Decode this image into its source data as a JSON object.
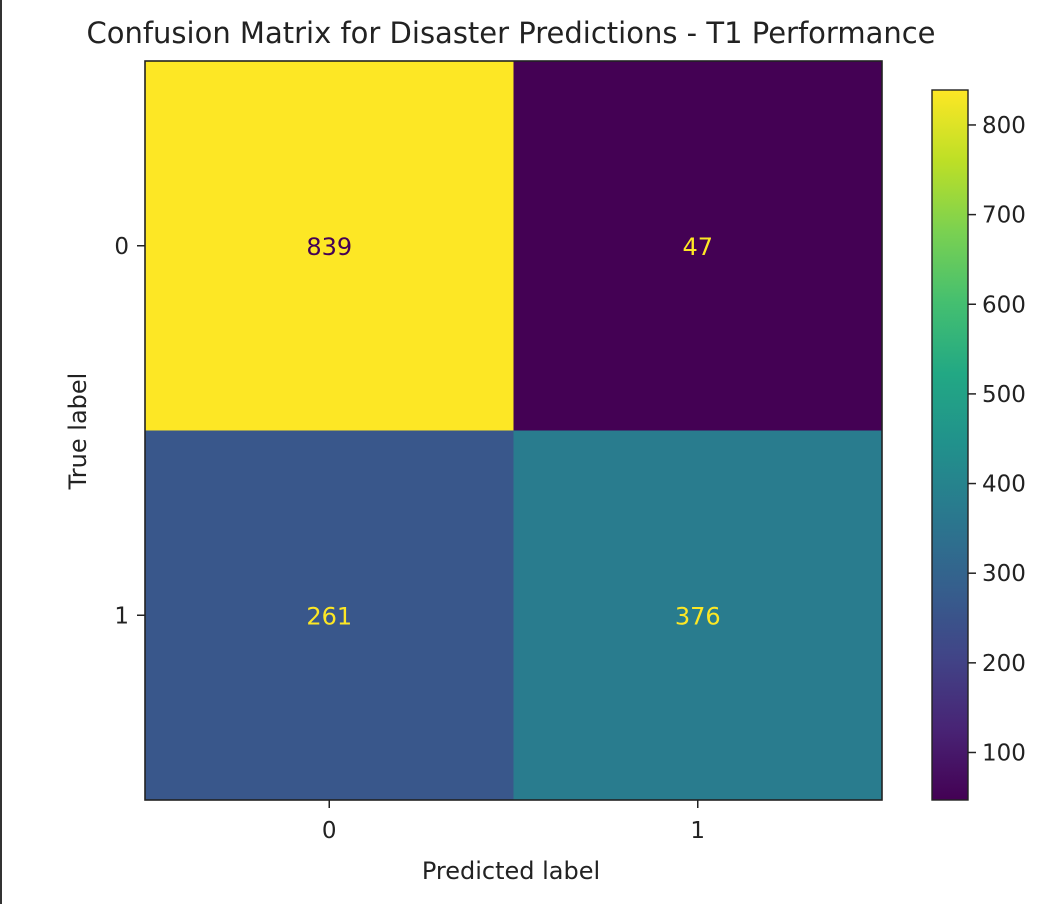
{
  "chart_data": {
    "type": "heatmap",
    "title": "Confusion Matrix for Disaster Predictions - T1 Performance",
    "xlabel": "Predicted label",
    "ylabel": "True label",
    "x_categories": [
      "0",
      "1"
    ],
    "y_categories": [
      "0",
      "1"
    ],
    "matrix": [
      [
        839,
        47
      ],
      [
        261,
        376
      ]
    ],
    "colormap": "viridis",
    "colorbar": {
      "range": [
        47,
        839
      ],
      "ticks": [
        100,
        200,
        300,
        400,
        500,
        600,
        700,
        800
      ],
      "tick_labels": [
        "100",
        "200",
        "300",
        "400",
        "500",
        "600",
        "700",
        "800"
      ]
    },
    "grid": false,
    "cell_text_colors": {
      "on_dark": "#fde725",
      "on_light": "#440154"
    }
  }
}
